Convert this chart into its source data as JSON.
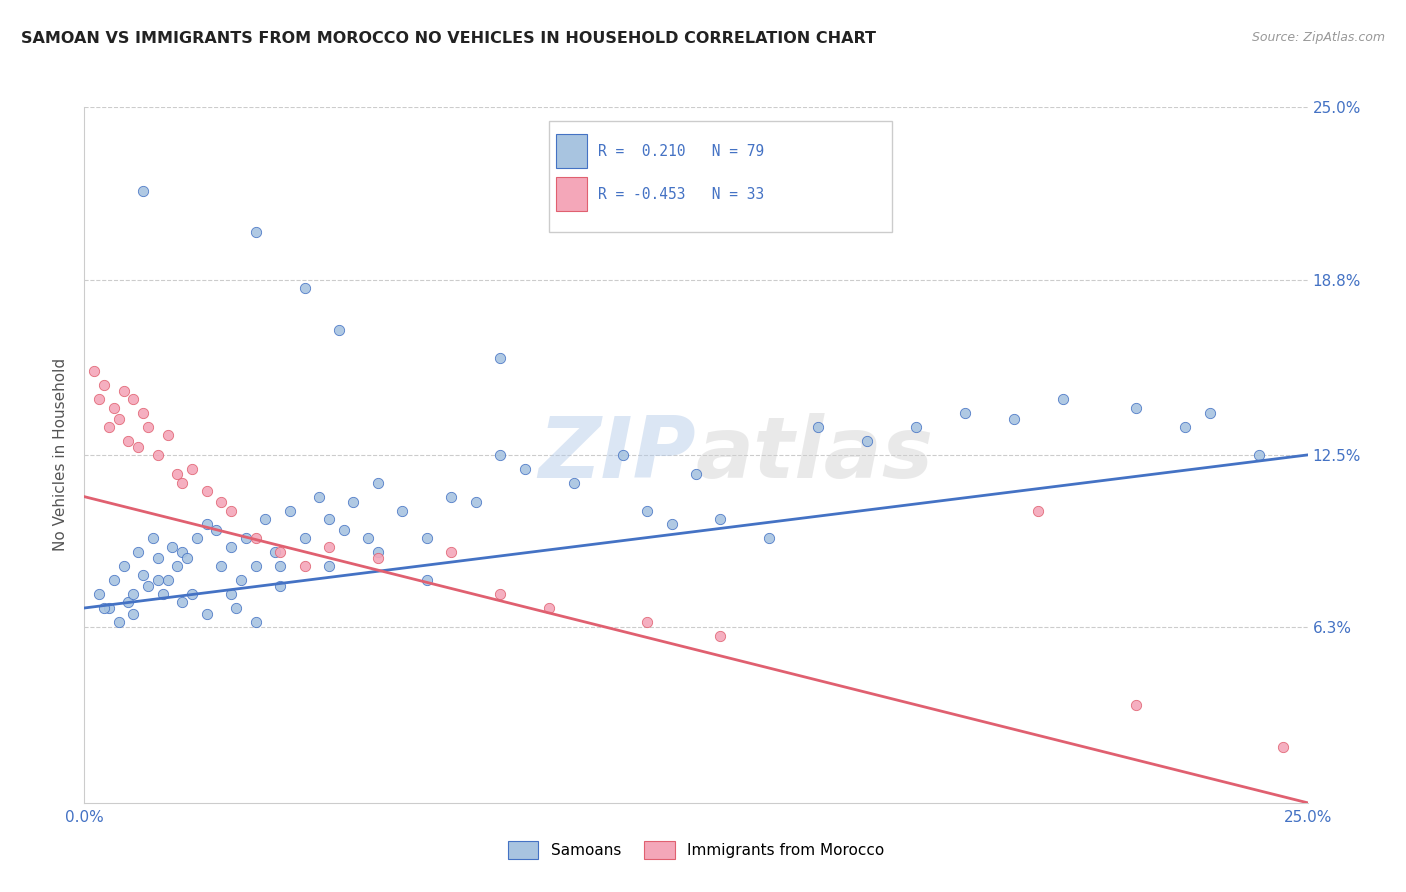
{
  "title": "SAMOAN VS IMMIGRANTS FROM MOROCCO NO VEHICLES IN HOUSEHOLD CORRELATION CHART",
  "source": "Source: ZipAtlas.com",
  "ylabel": "No Vehicles in Household",
  "ytick_labels": [
    "6.3%",
    "12.5%",
    "18.8%",
    "25.0%"
  ],
  "ytick_values": [
    6.3,
    12.5,
    18.8,
    25.0
  ],
  "xlim": [
    0.0,
    25.0
  ],
  "ylim": [
    0.0,
    25.0
  ],
  "legend_label_blue": "Samoans",
  "legend_label_pink": "Immigrants from Morocco",
  "color_blue": "#a8c4e0",
  "color_pink": "#f4a7b9",
  "line_color_blue": "#4472c4",
  "line_color_pink": "#e06070",
  "watermark_zip": "ZIP",
  "watermark_atlas": "atlas",
  "blue_scatter_x": [
    1.2,
    3.5,
    4.5,
    5.2,
    8.5,
    0.3,
    0.5,
    0.6,
    0.8,
    0.9,
    1.0,
    1.1,
    1.2,
    1.3,
    1.4,
    1.5,
    1.6,
    1.7,
    1.8,
    1.9,
    2.0,
    2.1,
    2.2,
    2.3,
    2.5,
    2.7,
    2.8,
    3.0,
    3.1,
    3.2,
    3.3,
    3.5,
    3.7,
    3.9,
    4.0,
    4.2,
    4.5,
    4.8,
    5.0,
    5.3,
    5.5,
    5.8,
    6.0,
    6.5,
    7.0,
    7.5,
    8.0,
    9.0,
    10.0,
    11.0,
    11.5,
    12.0,
    12.5,
    13.0,
    14.0,
    15.0,
    16.0,
    17.0,
    18.0,
    19.0,
    20.0,
    21.5,
    22.5,
    23.0,
    24.0,
    0.4,
    0.7,
    1.0,
    1.5,
    2.0,
    2.5,
    3.0,
    3.5,
    4.0,
    5.0,
    6.0,
    7.0,
    8.5
  ],
  "blue_scatter_y": [
    22.0,
    20.5,
    18.5,
    17.0,
    16.0,
    7.5,
    7.0,
    8.0,
    8.5,
    7.2,
    6.8,
    9.0,
    8.2,
    7.8,
    9.5,
    8.8,
    7.5,
    8.0,
    9.2,
    8.5,
    9.0,
    8.8,
    7.5,
    9.5,
    10.0,
    9.8,
    8.5,
    9.2,
    7.0,
    8.0,
    9.5,
    8.5,
    10.2,
    9.0,
    8.5,
    10.5,
    9.5,
    11.0,
    10.2,
    9.8,
    10.8,
    9.5,
    11.5,
    10.5,
    9.5,
    11.0,
    10.8,
    12.0,
    11.5,
    12.5,
    10.5,
    10.0,
    11.8,
    10.2,
    9.5,
    13.5,
    13.0,
    13.5,
    14.0,
    13.8,
    14.5,
    14.2,
    13.5,
    14.0,
    12.5,
    7.0,
    6.5,
    7.5,
    8.0,
    7.2,
    6.8,
    7.5,
    6.5,
    7.8,
    8.5,
    9.0,
    8.0,
    12.5
  ],
  "pink_scatter_x": [
    0.2,
    0.3,
    0.4,
    0.5,
    0.6,
    0.7,
    0.8,
    0.9,
    1.0,
    1.1,
    1.2,
    1.3,
    1.5,
    1.7,
    1.9,
    2.0,
    2.2,
    2.5,
    2.8,
    3.0,
    3.5,
    4.0,
    4.5,
    5.0,
    6.0,
    7.5,
    8.5,
    9.5,
    11.5,
    13.0,
    19.5,
    21.5,
    24.5
  ],
  "pink_scatter_y": [
    15.5,
    14.5,
    15.0,
    13.5,
    14.2,
    13.8,
    14.8,
    13.0,
    14.5,
    12.8,
    14.0,
    13.5,
    12.5,
    13.2,
    11.8,
    11.5,
    12.0,
    11.2,
    10.8,
    10.5,
    9.5,
    9.0,
    8.5,
    9.2,
    8.8,
    9.0,
    7.5,
    7.0,
    6.5,
    6.0,
    10.5,
    3.5,
    2.0
  ],
  "blue_line_x": [
    0.0,
    25.0
  ],
  "blue_line_y": [
    7.0,
    12.5
  ],
  "pink_line_x": [
    0.0,
    25.0
  ],
  "pink_line_y": [
    11.0,
    0.0
  ]
}
